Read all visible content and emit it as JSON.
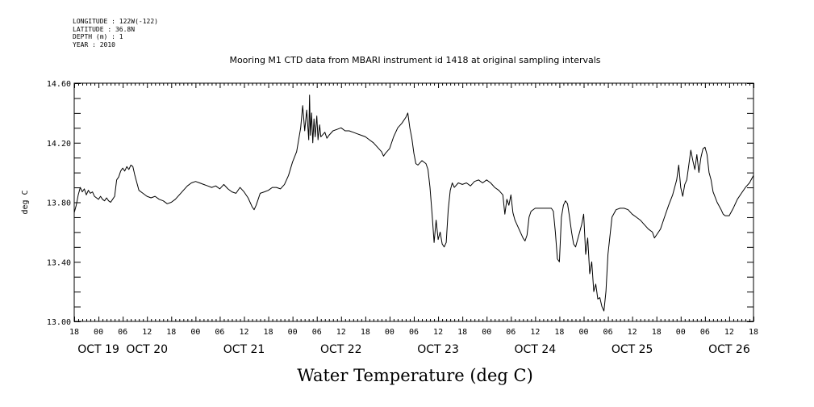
{
  "header": {
    "meta_lines": [
      "LONGITUDE : 122W(-122)",
      "LATITUDE : 36.8N",
      "DEPTH (m) : 1",
      "YEAR : 2010"
    ],
    "title": "Mooring M1 CTD data from MBARI instrument id 1418 at original sampling intervals"
  },
  "caption": "Water Temperature (deg C)",
  "chart_data": {
    "type": "line",
    "title": "Mooring M1 CTD data from MBARI instrument id 1418 at original sampling intervals",
    "xlabel": "",
    "ylabel": "deg C",
    "ylim": [
      13.0,
      14.6
    ],
    "yticks": [
      "13.00",
      "13.40",
      "13.80",
      "14.20",
      "14.60"
    ],
    "xlim_hours": [
      0,
      168
    ],
    "hour_tick_labels": [
      "18",
      "00",
      "06",
      "12",
      "18",
      "00",
      "06",
      "12",
      "18",
      "00",
      "06",
      "12",
      "18",
      "00",
      "06",
      "12",
      "18",
      "00",
      "06",
      "12",
      "18",
      "00",
      "06",
      "12",
      "18",
      "00",
      "06",
      "12",
      "18"
    ],
    "day_labels": [
      {
        "text": "OCT 19",
        "hour": 6
      },
      {
        "text": "OCT 20",
        "hour": 18
      },
      {
        "text": "OCT 21",
        "hour": 42
      },
      {
        "text": "OCT 22",
        "hour": 66
      },
      {
        "text": "OCT 23",
        "hour": 90
      },
      {
        "text": "OCT 24",
        "hour": 114
      },
      {
        "text": "OCT 25",
        "hour": 138
      },
      {
        "text": "OCT 26",
        "hour": 162
      }
    ],
    "grid": false,
    "series": [
      {
        "name": "Water Temperature",
        "color": "#000000",
        "points": [
          [
            0,
            13.73
          ],
          [
            0.5,
            13.78
          ],
          [
            1,
            13.85
          ],
          [
            1.5,
            13.9
          ],
          [
            2,
            13.87
          ],
          [
            2.5,
            13.89
          ],
          [
            3,
            13.85
          ],
          [
            3.5,
            13.88
          ],
          [
            4,
            13.86
          ],
          [
            4.5,
            13.87
          ],
          [
            5,
            13.84
          ],
          [
            5.5,
            13.83
          ],
          [
            6,
            13.82
          ],
          [
            6.5,
            13.84
          ],
          [
            7,
            13.82
          ],
          [
            7.5,
            13.81
          ],
          [
            8,
            13.83
          ],
          [
            8.5,
            13.81
          ],
          [
            9,
            13.8
          ],
          [
            9.5,
            13.82
          ],
          [
            10,
            13.84
          ],
          [
            10.5,
            13.95
          ],
          [
            11,
            13.97
          ],
          [
            11.5,
            14.01
          ],
          [
            12,
            14.03
          ],
          [
            12.5,
            14.01
          ],
          [
            13,
            14.04
          ],
          [
            13.5,
            14.02
          ],
          [
            14,
            14.05
          ],
          [
            14.5,
            14.04
          ],
          [
            15,
            13.98
          ],
          [
            15.5,
            13.93
          ],
          [
            16,
            13.88
          ],
          [
            17,
            13.86
          ],
          [
            18,
            13.84
          ],
          [
            19,
            13.83
          ],
          [
            20,
            13.84
          ],
          [
            21,
            13.82
          ],
          [
            22,
            13.81
          ],
          [
            23,
            13.79
          ],
          [
            24,
            13.8
          ],
          [
            25,
            13.82
          ],
          [
            26,
            13.85
          ],
          [
            27,
            13.88
          ],
          [
            28,
            13.91
          ],
          [
            29,
            13.93
          ],
          [
            30,
            13.94
          ],
          [
            31,
            13.93
          ],
          [
            32,
            13.92
          ],
          [
            33,
            13.91
          ],
          [
            34,
            13.9
          ],
          [
            35,
            13.91
          ],
          [
            36,
            13.89
          ],
          [
            37,
            13.92
          ],
          [
            38,
            13.89
          ],
          [
            39,
            13.87
          ],
          [
            40,
            13.86
          ],
          [
            41,
            13.9
          ],
          [
            42,
            13.87
          ],
          [
            43,
            13.83
          ],
          [
            44,
            13.77
          ],
          [
            44.5,
            13.75
          ],
          [
            45,
            13.78
          ],
          [
            45.5,
            13.82
          ],
          [
            46,
            13.86
          ],
          [
            47,
            13.87
          ],
          [
            48,
            13.88
          ],
          [
            49,
            13.9
          ],
          [
            50,
            13.9
          ],
          [
            51,
            13.89
          ],
          [
            52,
            13.92
          ],
          [
            53,
            13.98
          ],
          [
            54,
            14.07
          ],
          [
            55,
            14.14
          ],
          [
            55.5,
            14.22
          ],
          [
            56,
            14.3
          ],
          [
            56.5,
            14.45
          ],
          [
            57,
            14.28
          ],
          [
            57.5,
            14.42
          ],
          [
            58,
            14.22
          ],
          [
            58.2,
            14.52
          ],
          [
            58.4,
            14.25
          ],
          [
            58.7,
            14.4
          ],
          [
            59,
            14.2
          ],
          [
            59.3,
            14.36
          ],
          [
            59.6,
            14.24
          ],
          [
            60,
            14.38
          ],
          [
            60.3,
            14.22
          ],
          [
            60.7,
            14.32
          ],
          [
            61,
            14.24
          ],
          [
            62,
            14.27
          ],
          [
            62.5,
            14.23
          ],
          [
            63,
            14.25
          ],
          [
            64,
            14.28
          ],
          [
            65,
            14.29
          ],
          [
            66,
            14.3
          ],
          [
            67,
            14.28
          ],
          [
            68,
            14.28
          ],
          [
            69,
            14.27
          ],
          [
            70,
            14.26
          ],
          [
            71,
            14.25
          ],
          [
            72,
            14.24
          ],
          [
            73,
            14.22
          ],
          [
            74,
            14.2
          ],
          [
            75,
            14.17
          ],
          [
            76,
            14.14
          ],
          [
            76.5,
            14.11
          ],
          [
            77,
            14.13
          ],
          [
            78,
            14.16
          ],
          [
            79,
            14.24
          ],
          [
            80,
            14.3
          ],
          [
            81,
            14.33
          ],
          [
            82,
            14.37
          ],
          [
            82.5,
            14.4
          ],
          [
            83,
            14.3
          ],
          [
            83.5,
            14.23
          ],
          [
            84,
            14.13
          ],
          [
            84.5,
            14.06
          ],
          [
            85,
            14.05
          ],
          [
            86,
            14.08
          ],
          [
            87,
            14.06
          ],
          [
            87.5,
            14.02
          ],
          [
            88,
            13.9
          ],
          [
            88.5,
            13.72
          ],
          [
            89,
            13.53
          ],
          [
            89.5,
            13.68
          ],
          [
            90,
            13.55
          ],
          [
            90.5,
            13.6
          ],
          [
            91,
            13.52
          ],
          [
            91.5,
            13.5
          ],
          [
            92,
            13.53
          ],
          [
            92.5,
            13.75
          ],
          [
            93,
            13.88
          ],
          [
            93.5,
            13.93
          ],
          [
            94,
            13.9
          ],
          [
            95,
            13.93
          ],
          [
            96,
            13.92
          ],
          [
            97,
            13.93
          ],
          [
            98,
            13.91
          ],
          [
            99,
            13.94
          ],
          [
            100,
            13.95
          ],
          [
            101,
            13.93
          ],
          [
            102,
            13.95
          ],
          [
            103,
            13.93
          ],
          [
            104,
            13.9
          ],
          [
            105,
            13.88
          ],
          [
            106,
            13.85
          ],
          [
            106.5,
            13.72
          ],
          [
            107,
            13.82
          ],
          [
            107.5,
            13.78
          ],
          [
            108,
            13.85
          ],
          [
            108.5,
            13.73
          ],
          [
            109,
            13.68
          ],
          [
            110,
            13.62
          ],
          [
            111,
            13.56
          ],
          [
            111.5,
            13.54
          ],
          [
            112,
            13.58
          ],
          [
            112.5,
            13.7
          ],
          [
            113,
            13.74
          ],
          [
            114,
            13.76
          ],
          [
            115,
            13.76
          ],
          [
            116,
            13.76
          ],
          [
            117,
            13.76
          ],
          [
            118,
            13.76
          ],
          [
            118.5,
            13.74
          ],
          [
            119,
            13.6
          ],
          [
            119.5,
            13.42
          ],
          [
            120,
            13.4
          ],
          [
            120.5,
            13.7
          ],
          [
            121,
            13.78
          ],
          [
            121.5,
            13.81
          ],
          [
            122,
            13.79
          ],
          [
            122.5,
            13.7
          ],
          [
            123,
            13.6
          ],
          [
            123.5,
            13.52
          ],
          [
            124,
            13.5
          ],
          [
            124.5,
            13.55
          ],
          [
            125,
            13.6
          ],
          [
            125.5,
            13.65
          ],
          [
            126,
            13.72
          ],
          [
            126.5,
            13.45
          ],
          [
            127,
            13.56
          ],
          [
            127.5,
            13.32
          ],
          [
            128,
            13.4
          ],
          [
            128.5,
            13.2
          ],
          [
            129,
            13.25
          ],
          [
            129.5,
            13.15
          ],
          [
            130,
            13.16
          ],
          [
            130.5,
            13.1
          ],
          [
            131,
            13.07
          ],
          [
            131.5,
            13.2
          ],
          [
            132,
            13.45
          ],
          [
            133,
            13.7
          ],
          [
            134,
            13.75
          ],
          [
            135,
            13.76
          ],
          [
            136,
            13.76
          ],
          [
            137,
            13.75
          ],
          [
            138,
            13.72
          ],
          [
            139,
            13.7
          ],
          [
            140,
            13.68
          ],
          [
            141,
            13.65
          ],
          [
            142,
            13.62
          ],
          [
            143,
            13.6
          ],
          [
            143.5,
            13.56
          ],
          [
            144,
            13.58
          ],
          [
            145,
            13.62
          ],
          [
            146,
            13.7
          ],
          [
            147,
            13.78
          ],
          [
            148,
            13.85
          ],
          [
            149,
            13.95
          ],
          [
            149.5,
            14.05
          ],
          [
            150,
            13.9
          ],
          [
            150.5,
            13.84
          ],
          [
            151,
            13.92
          ],
          [
            151.5,
            13.95
          ],
          [
            152,
            14.05
          ],
          [
            152.5,
            14.15
          ],
          [
            153,
            14.08
          ],
          [
            153.5,
            14.02
          ],
          [
            154,
            14.12
          ],
          [
            154.5,
            14.0
          ],
          [
            155,
            14.1
          ],
          [
            155.5,
            14.16
          ],
          [
            156,
            14.17
          ],
          [
            156.5,
            14.12
          ],
          [
            157,
            14.0
          ],
          [
            157.5,
            13.95
          ],
          [
            158,
            13.87
          ],
          [
            159,
            13.8
          ],
          [
            160,
            13.75
          ],
          [
            160.5,
            13.72
          ],
          [
            161,
            13.71
          ],
          [
            162,
            13.71
          ],
          [
            163,
            13.76
          ],
          [
            164,
            13.82
          ],
          [
            165,
            13.86
          ],
          [
            166,
            13.9
          ],
          [
            167,
            13.93
          ],
          [
            168,
            13.98
          ]
        ]
      }
    ]
  }
}
